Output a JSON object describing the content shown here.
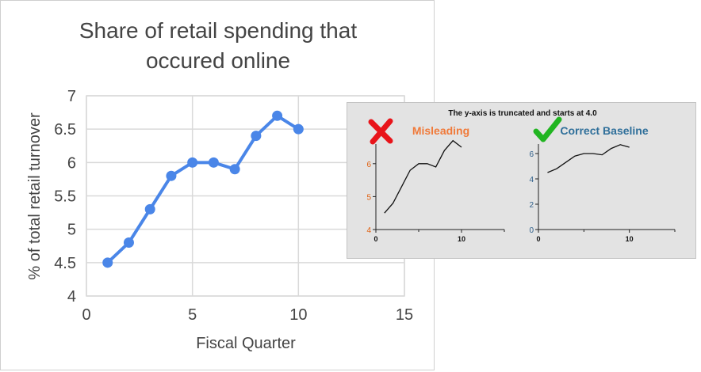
{
  "colors": {
    "main_line": "#4a86e8",
    "grid": "#d9d9d9",
    "axis_text": "#444444",
    "misleading_accent": "#f07a3a",
    "misleading_axis": "#e06010",
    "correct_accent": "#2f6f9a",
    "correct_axis": "#2f5f8a",
    "cross_icon": "#e8141a",
    "check_icon": "#21b521"
  },
  "icons": {
    "misleading": "cross-mark-icon",
    "correct": "check-mark-icon"
  },
  "chart_data": [
    {
      "type": "line",
      "title": "Share of retail spending that occured online",
      "title_lines": [
        "Share of retail spending that",
        "occured online"
      ],
      "xlabel": "Fiscal Quarter",
      "ylabel": "% of total retail turnover",
      "x": [
        1,
        2,
        3,
        4,
        5,
        6,
        7,
        8,
        9,
        10
      ],
      "y": [
        4.5,
        4.8,
        5.3,
        5.8,
        6.0,
        6.0,
        5.9,
        6.4,
        6.7,
        6.5
      ],
      "xlim": [
        0,
        15
      ],
      "ylim": [
        4,
        7
      ],
      "xticks": [
        "0",
        "5",
        "10",
        "15"
      ],
      "yticks": [
        "4",
        "4.5",
        "5",
        "5.5",
        "6",
        "6.5",
        "7"
      ],
      "grid": true
    },
    {
      "type": "line",
      "title": "The y-axis is truncated and starts at 4.0",
      "panels": [
        {
          "label": "Misleading",
          "x": [
            1,
            2,
            3,
            4,
            5,
            6,
            7,
            8,
            9,
            10
          ],
          "y": [
            4.5,
            4.8,
            5.3,
            5.8,
            6.0,
            6.0,
            5.9,
            6.4,
            6.7,
            6.5
          ],
          "ylim": [
            4,
            6.5
          ],
          "yticks": [
            "4",
            "5",
            "6"
          ],
          "xticks": [
            "0",
            "10"
          ],
          "xlim": [
            0,
            15
          ]
        },
        {
          "label": "Correct Baseline",
          "x": [
            1,
            2,
            3,
            4,
            5,
            6,
            7,
            8,
            9,
            10
          ],
          "y": [
            4.5,
            4.8,
            5.3,
            5.8,
            6.0,
            6.0,
            5.9,
            6.4,
            6.7,
            6.5
          ],
          "ylim": [
            0,
            6.5
          ],
          "yticks": [
            "0",
            "2",
            "4",
            "6"
          ],
          "xticks": [
            "0",
            "10"
          ],
          "xlim": [
            0,
            15
          ]
        }
      ]
    }
  ]
}
